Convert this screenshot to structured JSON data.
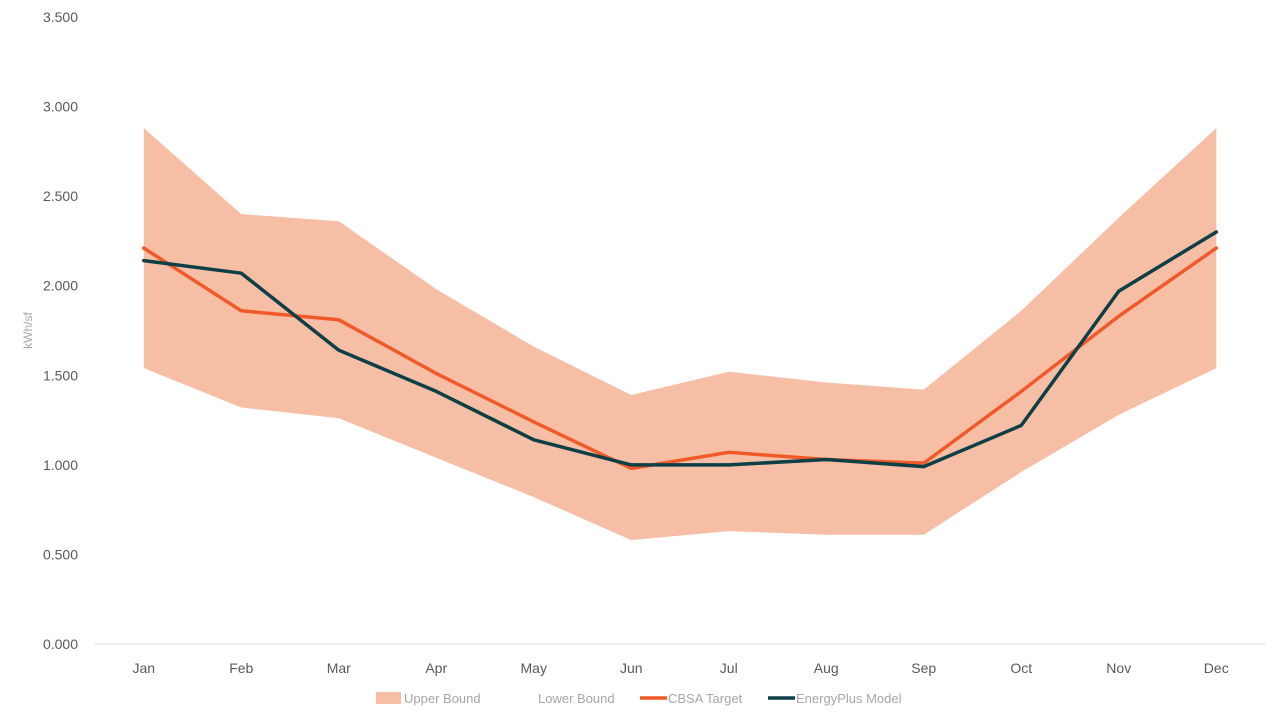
{
  "chart_data": {
    "type": "area",
    "ylabel": "kWh/sf",
    "xlabel": "",
    "ylim": [
      0,
      3.5
    ],
    "y_ticks": [
      "0.000",
      "0.500",
      "1.000",
      "1.500",
      "2.000",
      "2.500",
      "3.000",
      "3.500"
    ],
    "categories": [
      "Jan",
      "Feb",
      "Mar",
      "Apr",
      "May",
      "Jun",
      "Jul",
      "Aug",
      "Sep",
      "Oct",
      "Nov",
      "Dec"
    ],
    "grid": false,
    "legend_position": "bottom",
    "band": {
      "upper": {
        "name": "Upper Bound",
        "values": [
          2.88,
          2.4,
          2.36,
          1.98,
          1.66,
          1.39,
          1.52,
          1.46,
          1.42,
          1.86,
          2.38,
          2.88
        ],
        "color": "#F7BEA6"
      },
      "lower": {
        "name": "Lower Bound",
        "values": [
          1.54,
          1.32,
          1.26,
          1.04,
          0.82,
          0.58,
          0.63,
          0.61,
          0.61,
          0.96,
          1.28,
          1.54
        ],
        "color": "#FFFFFF"
      }
    },
    "series": [
      {
        "name": "CBSA Target",
        "values": [
          2.21,
          1.86,
          1.81,
          1.51,
          1.24,
          0.98,
          1.07,
          1.03,
          1.01,
          1.41,
          1.83,
          2.21
        ],
        "color": "#F05A28"
      },
      {
        "name": "EnergyPlus Model",
        "values": [
          2.14,
          2.07,
          1.64,
          1.41,
          1.14,
          1.0,
          1.0,
          1.03,
          0.99,
          1.22,
          1.97,
          2.3
        ],
        "color": "#0D3F47"
      }
    ],
    "colors": {
      "tick_text": "#595959",
      "axis_line": "#D9D9D9",
      "axis_title": "#A6A6A6"
    }
  }
}
